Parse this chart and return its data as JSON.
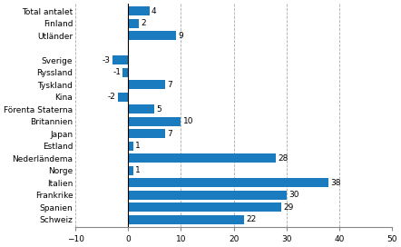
{
  "categories": [
    "Schweiz",
    "Spanien",
    "Frankrike",
    "Italien",
    "Norge",
    "Nederländema",
    "Estland",
    "Japan",
    "Britannien",
    "Förenta Staterna",
    "Kina",
    "Tyskland",
    "Ryssland",
    "Sverige",
    "",
    "Utländer",
    "Finland",
    "Total antalet"
  ],
  "values": [
    22,
    29,
    30,
    38,
    1,
    28,
    1,
    7,
    10,
    5,
    -2,
    7,
    -1,
    -3,
    null,
    9,
    2,
    4
  ],
  "bar_color": "#1b7bbf",
  "xlim": [
    -10,
    50
  ],
  "xticks": [
    -10,
    0,
    10,
    20,
    30,
    40,
    50
  ],
  "grid_color": "#aaaaaa",
  "bar_height": 0.75,
  "label_fontsize": 6.5,
  "value_fontsize": 6.5,
  "figsize": [
    4.42,
    2.72
  ],
  "dpi": 100
}
